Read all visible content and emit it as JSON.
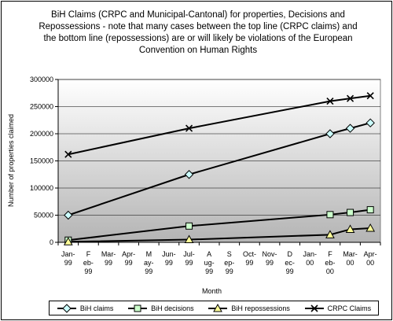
{
  "chart_data": {
    "type": "line",
    "title": "BiH Claims (CRPC and Municipal-Cantonal) for properties, Decisions and Repossessions - note that many cases between the top line (CRPC claims) and the bottom line (repossessions) are or will likely be violations of the European Convention on Human Rights",
    "xlabel": "Month",
    "ylabel": "Number of properties claimed",
    "ylim": [
      0,
      300000
    ],
    "yticks": [
      "0",
      "50000",
      "100000",
      "150000",
      "200000",
      "250000",
      "300000"
    ],
    "categories": [
      [
        "Jan-",
        "99"
      ],
      [
        "F",
        "eb-",
        "99"
      ],
      [
        "Mar-",
        "99"
      ],
      [
        "Apr-",
        "99"
      ],
      [
        "M",
        "ay-",
        "99"
      ],
      [
        "Jun-",
        "99"
      ],
      [
        "Jul-",
        "99"
      ],
      [
        "A",
        "ug-",
        "99"
      ],
      [
        "S",
        "ep-",
        "99"
      ],
      [
        "Oct-",
        "99"
      ],
      [
        "Nov-",
        "99"
      ],
      [
        "D",
        "ec-",
        "99"
      ],
      [
        "Jan-",
        "00"
      ],
      [
        "F",
        "eb-",
        "00"
      ],
      [
        "Mar-",
        "00"
      ],
      [
        "Apr-",
        "00"
      ]
    ],
    "series": [
      {
        "name": "BiH claims",
        "marker": "diamond",
        "color": "#ccffff",
        "points": [
          [
            0,
            50000
          ],
          [
            6,
            125000
          ],
          [
            13,
            200000
          ],
          [
            14,
            210000
          ],
          [
            15,
            220000
          ]
        ]
      },
      {
        "name": "BiH decisions",
        "marker": "square",
        "color": "#ccffcc",
        "points": [
          [
            0,
            4000
          ],
          [
            6,
            30000
          ],
          [
            13,
            51000
          ],
          [
            14,
            55000
          ],
          [
            15,
            60000
          ]
        ]
      },
      {
        "name": "BiH repossessions",
        "marker": "triangle",
        "color": "#ffff99",
        "points": [
          [
            0,
            1000
          ],
          [
            6,
            5000
          ],
          [
            13,
            14000
          ],
          [
            14,
            24000
          ],
          [
            15,
            26000
          ]
        ]
      },
      {
        "name": "CRPC Claims",
        "marker": "x",
        "color": "#000000",
        "points": [
          [
            0,
            162000
          ],
          [
            6,
            210000
          ],
          [
            13,
            260000
          ],
          [
            14,
            265000
          ],
          [
            15,
            270000
          ]
        ]
      }
    ],
    "grid": true,
    "legend_position": "bottom"
  }
}
